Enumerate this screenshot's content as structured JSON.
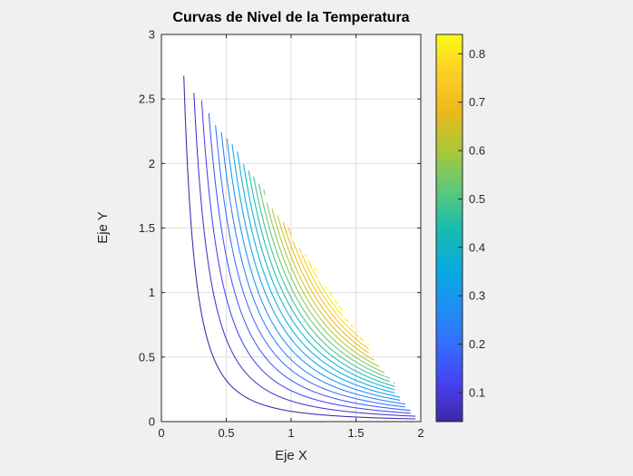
{
  "figure": {
    "title": "Curvas de Nivel de la Temperatura",
    "background": "#f0f0f0",
    "plot_background": "#ffffff",
    "box_color": "#262626",
    "grid_color": "#dcdcdc",
    "tick_label_color": "#262626"
  },
  "axes": {
    "xlabel": "Eje X",
    "ylabel": "Eje Y",
    "xlim": [
      0,
      2
    ],
    "ylim": [
      0,
      3
    ],
    "xtick_values": [
      0,
      0.5,
      1,
      1.5,
      2
    ],
    "xtick_labels": [
      "0",
      "0.5",
      "1",
      "1.5",
      "2"
    ],
    "ytick_values": [
      0,
      0.5,
      1,
      1.5,
      2,
      2.5,
      3
    ],
    "ytick_labels": [
      "0",
      "0.5",
      "1",
      "1.5",
      "2",
      "2.5",
      "3"
    ],
    "grid": true
  },
  "colorbar": {
    "min": 0.04,
    "max": 0.84,
    "tick_values": [
      0.1,
      0.2,
      0.3,
      0.4,
      0.5,
      0.6,
      0.7,
      0.8
    ],
    "tick_labels": [
      "0.1",
      "0.2",
      "0.3",
      "0.4",
      "0.5",
      "0.6",
      "0.7",
      "0.8"
    ]
  },
  "chart_data": {
    "type": "contour",
    "title": "Curvas de Nivel de la Temperatura",
    "xlabel": "Eje X",
    "ylabel": "Eje Y",
    "xlim": [
      0,
      2
    ],
    "ylim": [
      0,
      3
    ],
    "grid": true,
    "levels": [
      0.04,
      0.08,
      0.12,
      0.16,
      0.2,
      0.24,
      0.28,
      0.32,
      0.36,
      0.4,
      0.44,
      0.48,
      0.52,
      0.56,
      0.6,
      0.64,
      0.68,
      0.72,
      0.76,
      0.8,
      0.84
    ],
    "level_curve_equation": "y = 2*c / x^2  (level curves of T(x,y) = x^2*y/2)",
    "domain_boundary": "1.5*x + y <= 3 (triangular plate; curves end raggedly at this diagonal)",
    "mask_grid_step": {
      "x": 0.04,
      "y": 0.05
    },
    "color_limits": [
      0.04,
      0.84
    ],
    "colormap": {
      "name": "parula",
      "stops": [
        [
          0.0,
          "#3e26a8"
        ],
        [
          0.1,
          "#4642f3"
        ],
        [
          0.2,
          "#356efd"
        ],
        [
          0.3,
          "#1c91f3"
        ],
        [
          0.4,
          "#07acdc"
        ],
        [
          0.5,
          "#1abcaf"
        ],
        [
          0.6,
          "#5fc878"
        ],
        [
          0.7,
          "#aac739"
        ],
        [
          0.8,
          "#ebb91b"
        ],
        [
          0.9,
          "#fdcf25"
        ],
        [
          1.0,
          "#f9fb15"
        ]
      ]
    },
    "legend_position": "colorbar-right"
  }
}
